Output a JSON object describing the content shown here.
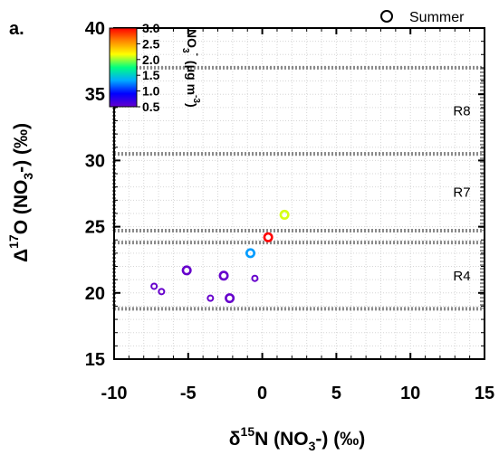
{
  "chart_data": {
    "type": "scatter",
    "panel_label": "a.",
    "xlabel": {
      "prefix": "δ",
      "sup": "15",
      "main": "N (NO",
      "sub": "3",
      "suffix": "-) (‰)"
    },
    "ylabel": {
      "prefix": "Δ",
      "sup": "17",
      "main": "O (NO",
      "sub": "3",
      "suffix": "-) (‰)"
    },
    "xlim": [
      -10,
      15
    ],
    "ylim": [
      15,
      40
    ],
    "xticks": [
      "-10",
      "-5",
      "0",
      "5",
      "10",
      "15"
    ],
    "yticks": [
      "15",
      "20",
      "25",
      "30",
      "35",
      "40"
    ],
    "grid": "dotted minor grid on",
    "legend": {
      "placement": "top-right",
      "label": "Summer",
      "marker": "open-circle"
    },
    "colorbar": {
      "title": "NO3- (μg m-3)",
      "title_parts": {
        "main": "NO",
        "sub": "3",
        "sup1": "-",
        "unit": "(μg m",
        "sup2": "-3",
        "close": ")"
      },
      "range": [
        0.5,
        3.0
      ],
      "ticks": [
        "3.0",
        "2.5",
        "2.0",
        "1.5",
        "1.0",
        "0.5"
      ],
      "colormap": [
        "#6600cc",
        "#0000ff",
        "#00aaff",
        "#00ff80",
        "#ffff00",
        "#ff8800",
        "#ff0000"
      ]
    },
    "regions": [
      {
        "name": "R8",
        "x": [
          -10,
          15
        ],
        "y": [
          30.5,
          37
        ]
      },
      {
        "name": "R7",
        "x": [
          -10,
          15
        ],
        "y": [
          24.7,
          30.5
        ]
      },
      {
        "name": "R4",
        "x": [
          -10,
          15
        ],
        "y": [
          18.8,
          23.8
        ]
      }
    ],
    "series": [
      {
        "points": [
          {
            "x": 1.5,
            "y": 25.9,
            "c": 2.1,
            "size": "large"
          },
          {
            "x": 0.4,
            "y": 24.2,
            "c": 3.0,
            "size": "large"
          },
          {
            "x": -0.8,
            "y": 23.0,
            "c": 1.3,
            "size": "large"
          },
          {
            "x": -5.1,
            "y": 21.7,
            "c": 0.5,
            "size": "large"
          },
          {
            "x": -2.6,
            "y": 21.3,
            "c": 0.5,
            "size": "large"
          },
          {
            "x": -0.5,
            "y": 21.1,
            "c": 0.5,
            "size": "small"
          },
          {
            "x": -7.3,
            "y": 20.5,
            "c": 0.5,
            "size": "small"
          },
          {
            "x": -6.8,
            "y": 20.1,
            "c": 0.5,
            "size": "small"
          },
          {
            "x": -3.5,
            "y": 19.6,
            "c": 0.5,
            "size": "small"
          },
          {
            "x": -2.2,
            "y": 19.6,
            "c": 0.5,
            "size": "large"
          }
        ]
      }
    ]
  }
}
